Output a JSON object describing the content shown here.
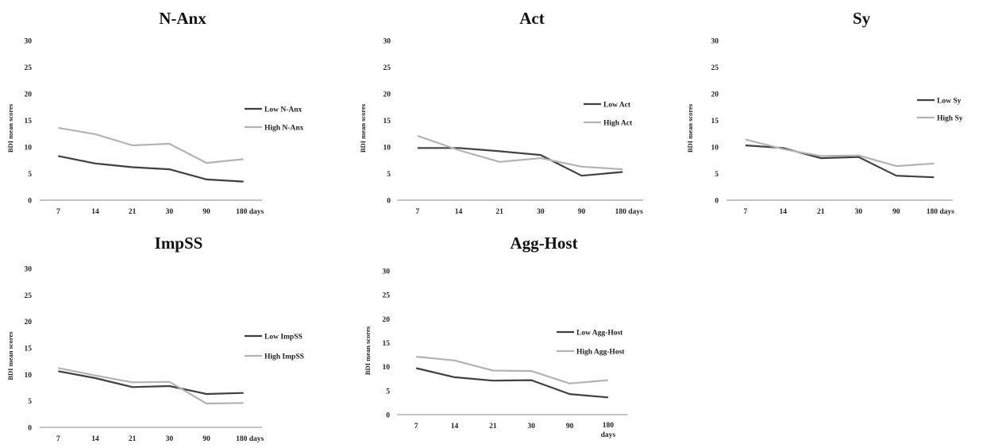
{
  "chart_data": [
    {
      "type": "line",
      "title": "N-Anx",
      "ylabel": "BDI mean scores",
      "categories": [
        "7",
        "14",
        "21",
        "30",
        "90",
        "180 days"
      ],
      "ylim": [
        0,
        30
      ],
      "yticks": [
        "0",
        "5",
        "10",
        "15",
        "20",
        "25",
        "30"
      ],
      "legend": "right",
      "series": [
        {
          "name": "Low N-Anx",
          "color": "#404040",
          "values": [
            8.3,
            6.9,
            6.2,
            5.8,
            3.9,
            3.5
          ]
        },
        {
          "name": "High N-Anx",
          "color": "#b3b3b3",
          "values": [
            13.6,
            12.4,
            10.3,
            10.6,
            7.0,
            7.7
          ]
        }
      ]
    },
    {
      "type": "line",
      "title": "Act",
      "ylabel": "BDI mean scores",
      "categories": [
        "7",
        "14",
        "21",
        "30",
        "90",
        "180 days"
      ],
      "ylim": [
        0,
        30
      ],
      "yticks": [
        "0",
        "5",
        "10",
        "15",
        "20",
        "25",
        "30"
      ],
      "legend": "right",
      "series": [
        {
          "name": "Low Act",
          "color": "#404040",
          "values": [
            9.8,
            9.8,
            9.2,
            8.5,
            4.6,
            5.3
          ]
        },
        {
          "name": "High Act",
          "color": "#b3b3b3",
          "values": [
            12.1,
            9.4,
            7.2,
            7.9,
            6.3,
            5.8
          ]
        }
      ]
    },
    {
      "type": "line",
      "title": "Sy",
      "ylabel": "BDI mean scores",
      "categories": [
        "7",
        "14",
        "21",
        "30",
        "90",
        "180 days"
      ],
      "ylim": [
        0,
        30
      ],
      "yticks": [
        "0",
        "5",
        "10",
        "15",
        "20",
        "25",
        "30"
      ],
      "legend": "right",
      "series": [
        {
          "name": "Low Sy",
          "color": "#404040",
          "values": [
            10.3,
            9.8,
            7.9,
            8.1,
            4.6,
            4.3
          ]
        },
        {
          "name": "High Sy",
          "color": "#b3b3b3",
          "values": [
            11.4,
            9.6,
            8.3,
            8.4,
            6.4,
            6.9
          ]
        }
      ]
    },
    {
      "type": "line",
      "title": "ImpSS",
      "ylabel": "BDI mean scores",
      "categories": [
        "7",
        "14",
        "21",
        "30",
        "90",
        "180 days"
      ],
      "ylim": [
        0,
        30
      ],
      "yticks": [
        "0",
        "5",
        "10",
        "15",
        "20",
        "25",
        "30"
      ],
      "legend": "right",
      "series": [
        {
          "name": "Low ImpSS",
          "color": "#404040",
          "values": [
            10.6,
            9.3,
            7.6,
            7.8,
            6.3,
            6.5
          ]
        },
        {
          "name": "High ImpSS",
          "color": "#b3b3b3",
          "values": [
            11.2,
            9.8,
            8.5,
            8.6,
            4.5,
            4.6
          ]
        }
      ]
    },
    {
      "type": "line",
      "title": "Agg-Host",
      "ylabel": "BDI mean scores",
      "categories": [
        "7",
        "14",
        "21",
        "30",
        "90",
        "180 days"
      ],
      "ylim": [
        0,
        30
      ],
      "yticks": [
        "0",
        "5",
        "10",
        "15",
        "20",
        "25",
        "30"
      ],
      "legend": "right",
      "series": [
        {
          "name": "Low Agg-Host",
          "color": "#404040",
          "values": [
            9.7,
            7.8,
            7.1,
            7.2,
            4.3,
            3.6
          ]
        },
        {
          "name": "High Agg-Host",
          "color": "#b3b3b3",
          "values": [
            12.1,
            11.3,
            9.2,
            9.1,
            6.5,
            7.2
          ]
        }
      ]
    }
  ]
}
